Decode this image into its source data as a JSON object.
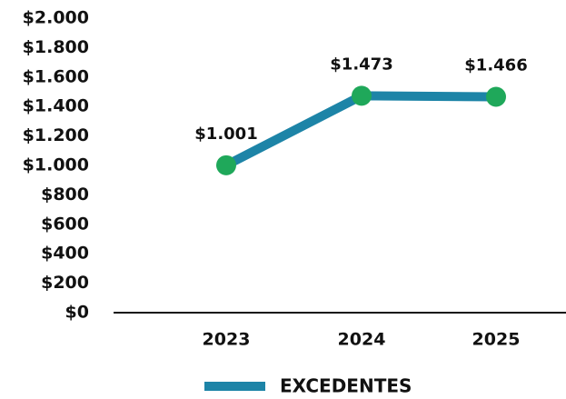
{
  "chart_data": {
    "type": "line",
    "categories": [
      "2023",
      "2024",
      "2025"
    ],
    "series": [
      {
        "name": "EXCEDENTES",
        "color": "#1d84a7",
        "marker_color": "#1fa85a",
        "values": [
          1001,
          1473,
          1466
        ],
        "value_labels": [
          "$1.001",
          "$1.473",
          "$1.466"
        ]
      }
    ],
    "ylim": [
      0,
      2000
    ],
    "yticks": [
      {
        "value": 0,
        "label": "$0"
      },
      {
        "value": 200,
        "label": "$200"
      },
      {
        "value": 400,
        "label": "$400"
      },
      {
        "value": 600,
        "label": "$600"
      },
      {
        "value": 800,
        "label": "$800"
      },
      {
        "value": 1000,
        "label": "$1.000"
      },
      {
        "value": 1200,
        "label": "$1.200"
      },
      {
        "value": 1400,
        "label": "$1.400"
      },
      {
        "value": 1600,
        "label": "$1.600"
      },
      {
        "value": 1800,
        "label": "$1.800"
      },
      {
        "value": 2000,
        "label": "$2.000"
      }
    ],
    "grid": false,
    "legend": "bottom"
  }
}
